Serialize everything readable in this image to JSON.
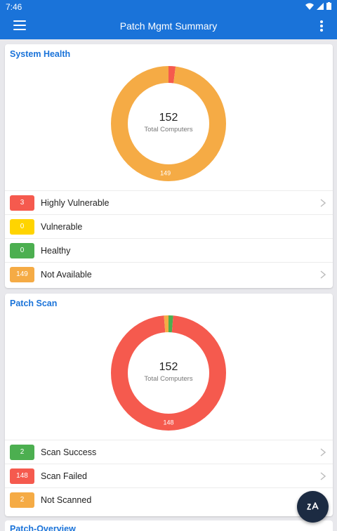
{
  "status_bar": {
    "time": "7:46"
  },
  "app_bar": {
    "title": "Patch Mgmt Summary"
  },
  "system_health": {
    "title": "System Health",
    "total": "152",
    "total_label": "Total Computers",
    "slice_label": "149",
    "segments": [
      {
        "key": "highly_vulnerable",
        "value": 3,
        "color": "#f55a4e"
      },
      {
        "key": "vulnerable",
        "value": 0,
        "color": "#ffd400"
      },
      {
        "key": "healthy",
        "value": 0,
        "color": "#4caf50"
      },
      {
        "key": "not_available",
        "value": 149,
        "color": "#f5ab45"
      }
    ],
    "rows": [
      {
        "count": "3",
        "label": "Highly Vulnerable",
        "color": "#f55a4e"
      },
      {
        "count": "0",
        "label": "Vulnerable",
        "color": "#ffd400"
      },
      {
        "count": "0",
        "label": "Healthy",
        "color": "#4caf50"
      },
      {
        "count": "149",
        "label": "Not Available",
        "color": "#f5ab45"
      }
    ]
  },
  "patch_scan": {
    "title": "Patch Scan",
    "total": "152",
    "total_label": "Total Computers",
    "slice_label": "148",
    "segments": [
      {
        "key": "scan_success",
        "value": 2,
        "color": "#4caf50"
      },
      {
        "key": "scan_failed",
        "value": 148,
        "color": "#f55a4e"
      },
      {
        "key": "not_scanned",
        "value": 2,
        "color": "#f5ab45"
      }
    ],
    "rows": [
      {
        "count": "2",
        "label": "Scan Success",
        "color": "#4caf50"
      },
      {
        "count": "148",
        "label": "Scan Failed",
        "color": "#f55a4e"
      },
      {
        "count": "2",
        "label": "Not Scanned",
        "color": "#f5ab45"
      }
    ]
  },
  "patch_overview": {
    "title": "Patch-Overview"
  },
  "colors": {
    "primary": "#1a73d9",
    "fab": "#1c2b42"
  }
}
